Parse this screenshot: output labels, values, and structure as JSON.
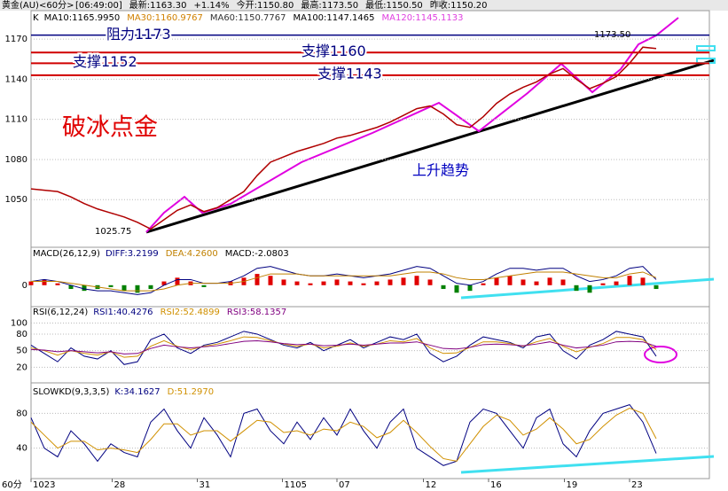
{
  "header": {
    "symbol": "黄金(AU)<60分>",
    "items": [
      "[06:49:00]",
      "最新:1163.30",
      "+1.14%",
      "今开:1150.80",
      "最高:1173.50",
      "最低:1150.50",
      "昨收:1150.20"
    ]
  },
  "x_axis": {
    "xlim": [
      0,
      51
    ],
    "unit_label": "60分",
    "xticks": [
      {
        "value": 0,
        "label": "1023"
      },
      {
        "value": 6.1,
        "label": "28"
      },
      {
        "value": 12.5,
        "label": "31"
      },
      {
        "value": 18.9,
        "label": "1105"
      },
      {
        "value": 23,
        "label": "07"
      },
      {
        "value": 29.5,
        "label": "12"
      },
      {
        "value": 34.4,
        "label": "16"
      },
      {
        "value": 40.1,
        "label": "19"
      },
      {
        "value": 45,
        "label": "23"
      }
    ]
  },
  "chart_data": [
    {
      "type": "line",
      "title": "K",
      "indicators": [
        {
          "text": "MA10:1165.9950",
          "color": "#000000"
        },
        {
          "text": "MA30:1160.9767",
          "color": "#d08000"
        },
        {
          "text": "MA60:1150.7767",
          "color": "#333333"
        },
        {
          "text": "MA100:1147.1465",
          "color": "#000000"
        },
        {
          "text": "MA120:1145.1133",
          "color": "#e040e0"
        }
      ],
      "ylim": [
        1015,
        1190
      ],
      "yticks": [
        1050,
        1080,
        1110,
        1140,
        1170
      ],
      "grid": true,
      "series": [
        {
          "color": "#b00000",
          "values": [
            1058,
            1057,
            1056,
            1052,
            1047,
            1043,
            1040,
            1037,
            1033,
            1028,
            1035,
            1042,
            1046,
            1041,
            1044,
            1050,
            1056,
            1068,
            1078,
            1082,
            1086,
            1089,
            1092,
            1096,
            1098,
            1101,
            1104,
            1108,
            1113,
            1118,
            1120,
            1114,
            1106,
            1104,
            1112,
            1122,
            1129,
            1134,
            1138,
            1144,
            1148,
            1140,
            1133,
            1137,
            1142,
            1152,
            1164,
            1163
          ]
        }
      ],
      "levels": [
        {
          "value": 1173,
          "label": "阻力1173",
          "color": "#000080"
        },
        {
          "value": 1160,
          "label": "支撑1160",
          "color": "#d00000"
        },
        {
          "value": 1152,
          "label": "支撑1152",
          "color": "#d00000"
        },
        {
          "value": 1143,
          "label": "支撑1143",
          "color": "#d00000"
        }
      ],
      "low_label": 1025.75,
      "high_label": {
        "value": 1173.5,
        "label": "1173.50"
      },
      "annotations": [
        "破冰点金",
        "上升趋势"
      ]
    },
    {
      "type": "bar",
      "title": "MACD(26,12,9)",
      "indicators": [
        {
          "text": "DIFF:3.2199",
          "color": "#000080"
        },
        {
          "text": "DEA:4.2600",
          "color": "#c08000"
        },
        {
          "text": "MACD:-2.0803",
          "color": "#000000"
        }
      ],
      "ylim": [
        -10,
        15
      ],
      "yticks": [
        0
      ],
      "colors": {
        "up": "#e00000",
        "down": "#008000"
      },
      "values": [
        2,
        3,
        1,
        -2,
        -3,
        -2,
        -1,
        -3,
        -4,
        -2,
        2,
        4,
        2,
        -1,
        0,
        2,
        4,
        6,
        5,
        3,
        2,
        1,
        2,
        3,
        2,
        1,
        2,
        3,
        4,
        5,
        3,
        -2,
        -4,
        -3,
        1,
        4,
        5,
        3,
        2,
        4,
        3,
        -3,
        -4,
        1,
        2,
        5,
        4,
        -2
      ],
      "series": [
        {
          "color": "#000080",
          "values": [
            2,
            3,
            2,
            0,
            -2,
            -3,
            -3,
            -4,
            -5,
            -4,
            0,
            3,
            3,
            1,
            1,
            2,
            5,
            9,
            10,
            8,
            6,
            5,
            5,
            6,
            5,
            4,
            5,
            6,
            8,
            10,
            9,
            5,
            1,
            0,
            2,
            6,
            9,
            9,
            8,
            9,
            9,
            5,
            2,
            3,
            5,
            9,
            10,
            3
          ]
        },
        {
          "color": "#c08000",
          "values": [
            2,
            2,
            2,
            1,
            0,
            -1,
            -2,
            -3,
            -3,
            -3,
            -2,
            0,
            1,
            1,
            1,
            1,
            2,
            4,
            6,
            6,
            6,
            5,
            5,
            5,
            5,
            5,
            5,
            5,
            6,
            7,
            7,
            6,
            4,
            3,
            3,
            4,
            5,
            6,
            7,
            7,
            7,
            6,
            5,
            4,
            4,
            6,
            7,
            4
          ]
        }
      ]
    },
    {
      "type": "line",
      "title": "RSI(6,12,24)",
      "indicators": [
        {
          "text": "RSI1:40.4276",
          "color": "#000080"
        },
        {
          "text": "RSI2:52.4899",
          "color": "#d09000"
        },
        {
          "text": "RSI3:58.1357",
          "color": "#800080"
        }
      ],
      "ylim": [
        -5,
        120
      ],
      "yticks": [
        20,
        50,
        80,
        100
      ],
      "grid": true,
      "series": [
        {
          "color": "#000080",
          "values": [
            60,
            45,
            30,
            55,
            40,
            35,
            50,
            25,
            30,
            70,
            80,
            55,
            45,
            60,
            65,
            75,
            85,
            80,
            70,
            60,
            55,
            65,
            50,
            60,
            70,
            55,
            65,
            75,
            70,
            80,
            45,
            30,
            40,
            60,
            75,
            70,
            65,
            55,
            75,
            80,
            50,
            35,
            60,
            70,
            85,
            80,
            75,
            40
          ]
        },
        {
          "color": "#d09000",
          "values": [
            55,
            50,
            42,
            50,
            45,
            42,
            48,
            38,
            40,
            58,
            68,
            58,
            52,
            58,
            62,
            68,
            75,
            74,
            68,
            62,
            58,
            62,
            55,
            58,
            64,
            58,
            62,
            68,
            66,
            72,
            55,
            45,
            46,
            56,
            66,
            66,
            63,
            58,
            66,
            72,
            58,
            48,
            56,
            63,
            74,
            74,
            70,
            52
          ]
        },
        {
          "color": "#800080",
          "values": [
            52,
            51,
            48,
            50,
            48,
            46,
            48,
            44,
            45,
            54,
            60,
            57,
            55,
            57,
            59,
            63,
            67,
            68,
            66,
            63,
            61,
            62,
            59,
            60,
            62,
            60,
            62,
            64,
            64,
            66,
            60,
            54,
            53,
            56,
            61,
            62,
            61,
            59,
            62,
            66,
            60,
            55,
            57,
            60,
            66,
            67,
            66,
            58
          ]
        }
      ]
    },
    {
      "type": "line",
      "title": "SLOWKD(9,3,3,5)",
      "indicators": [
        {
          "text": "K:34.1627",
          "color": "#000080"
        },
        {
          "text": "D:51.2970",
          "color": "#d09000"
        }
      ],
      "ylim": [
        5,
        110
      ],
      "yticks": [
        40,
        80
      ],
      "grid": true,
      "series": [
        {
          "color": "#000080",
          "values": [
            75,
            40,
            30,
            60,
            45,
            25,
            45,
            35,
            30,
            70,
            85,
            60,
            40,
            75,
            55,
            30,
            80,
            85,
            60,
            45,
            70,
            50,
            75,
            55,
            85,
            60,
            40,
            70,
            85,
            40,
            30,
            20,
            25,
            70,
            85,
            80,
            60,
            40,
            75,
            85,
            45,
            30,
            60,
            80,
            85,
            90,
            70,
            34
          ]
        },
        {
          "color": "#d09000",
          "values": [
            70,
            55,
            40,
            48,
            48,
            38,
            40,
            38,
            35,
            50,
            68,
            68,
            55,
            60,
            60,
            48,
            60,
            72,
            70,
            58,
            60,
            55,
            62,
            60,
            70,
            65,
            52,
            58,
            72,
            58,
            42,
            28,
            25,
            45,
            65,
            78,
            72,
            55,
            62,
            75,
            62,
            45,
            50,
            65,
            78,
            86,
            80,
            51
          ]
        }
      ]
    }
  ]
}
